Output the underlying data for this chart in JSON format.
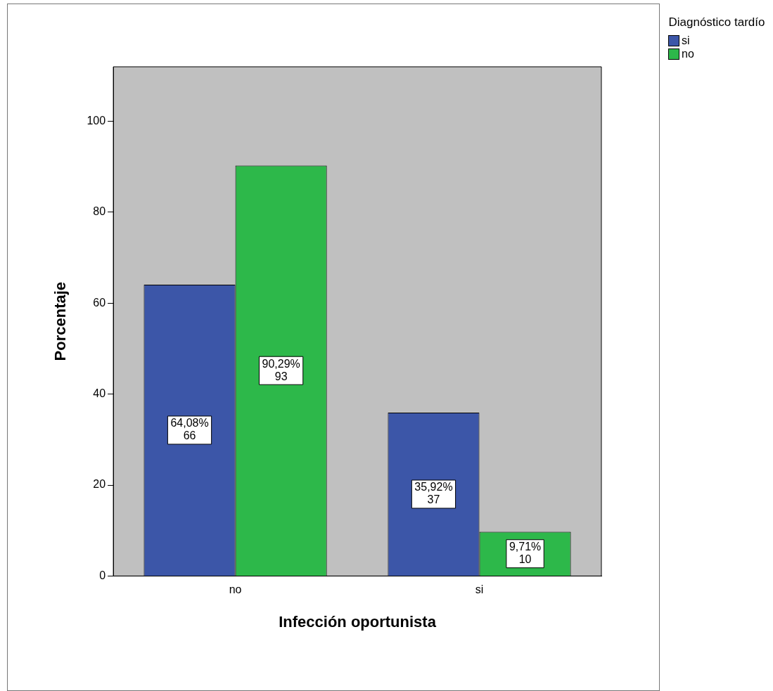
{
  "chart_data": {
    "type": "bar",
    "xlabel": "Infección oportunista",
    "ylabel": "Porcentaje",
    "legend_title": "Diagnóstico tardío",
    "categories": [
      "no",
      "si"
    ],
    "series": [
      {
        "name": "si",
        "color": "#3c56a8",
        "values": [
          64.08,
          35.92
        ],
        "value_labels": [
          "64,08%\n66",
          "35,92%\n37"
        ]
      },
      {
        "name": "no",
        "color": "#2db84a",
        "values": [
          90.29,
          9.71
        ],
        "value_labels": [
          "90,29%\n93",
          "9,71%\n10"
        ]
      }
    ],
    "ylim": [
      0,
      112
    ],
    "yticks": [
      0,
      20,
      40,
      60,
      80,
      100
    ],
    "grid": false,
    "legend": "top right"
  }
}
